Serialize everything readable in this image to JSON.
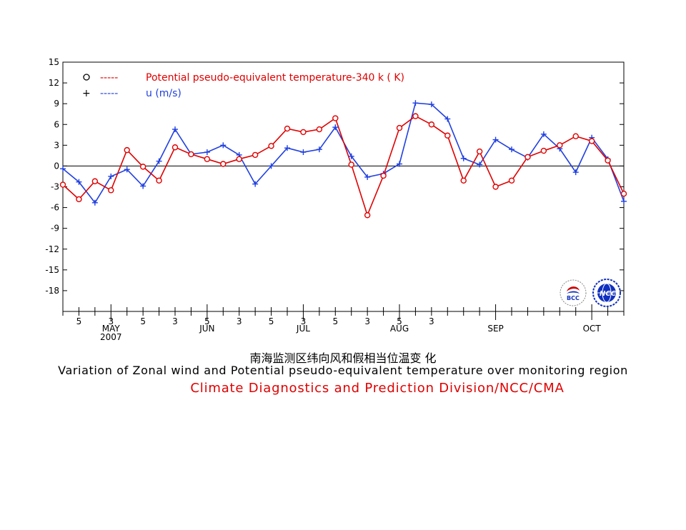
{
  "chart_data": {
    "type": "line",
    "title_cn": "南海监测区纬向风和假相当位温变 化",
    "title_en": "Variation of Zonal wind and Potential pseudo-equivalent temperature over monitoring region",
    "credit": "Climate Diagnostics and Prediction Division/NCC/CMA",
    "ylim": [
      -21,
      15
    ],
    "yticks": [
      "15",
      "12",
      "9",
      "6",
      "3",
      "0",
      "-3",
      "-6",
      "-9",
      "-12",
      "-15",
      "-18"
    ],
    "x_day_labels": [
      "5",
      "3",
      "5",
      "3",
      "5",
      "3",
      "5",
      "3",
      "5",
      "3",
      "5",
      "3"
    ],
    "x_month_labels": [
      "MAY",
      "JUN",
      "JUL",
      "AUG",
      "SEP",
      "OCT"
    ],
    "x_year_label": "2007",
    "zero_line": true,
    "legend": {
      "position": "top-left"
    },
    "series": [
      {
        "name": "Potential pseudo-equivalent temperature-340 k  ( K)",
        "legend_symbol": "o",
        "legend_dashes": "-----",
        "color": "#e00000",
        "marker": "circle",
        "values": [
          -2.7,
          -4.8,
          -2.2,
          -3.5,
          2.3,
          -0.1,
          -2.1,
          2.7,
          1.7,
          1.0,
          0.3,
          1.0,
          1.6,
          2.9,
          5.4,
          4.9,
          5.3,
          6.9,
          0.2,
          -7.1,
          -1.4,
          5.5,
          7.2,
          6.0,
          4.4,
          -2.1,
          2.1,
          -3.0,
          -2.1,
          1.3,
          2.2,
          3.0,
          4.3,
          3.6,
          0.8,
          -4.0
        ]
      },
      {
        "name": "u  (m/s)",
        "legend_symbol": "+",
        "legend_dashes": "-----",
        "color": "#2040e0",
        "marker": "plus",
        "values": [
          -0.4,
          -2.3,
          -5.3,
          -1.5,
          -0.5,
          -2.9,
          0.7,
          5.3,
          1.7,
          2.0,
          3.0,
          1.6,
          -2.6,
          0.0,
          2.6,
          2.0,
          2.4,
          5.6,
          1.4,
          -1.6,
          -1.1,
          0.3,
          9.1,
          8.9,
          6.8,
          1.1,
          0.2,
          3.8,
          2.4,
          1.2,
          4.6,
          2.5,
          -0.9,
          4.1,
          1.0,
          -5.1
        ]
      }
    ]
  },
  "logos": [
    "bcc-logo",
    "ncc-logo"
  ]
}
